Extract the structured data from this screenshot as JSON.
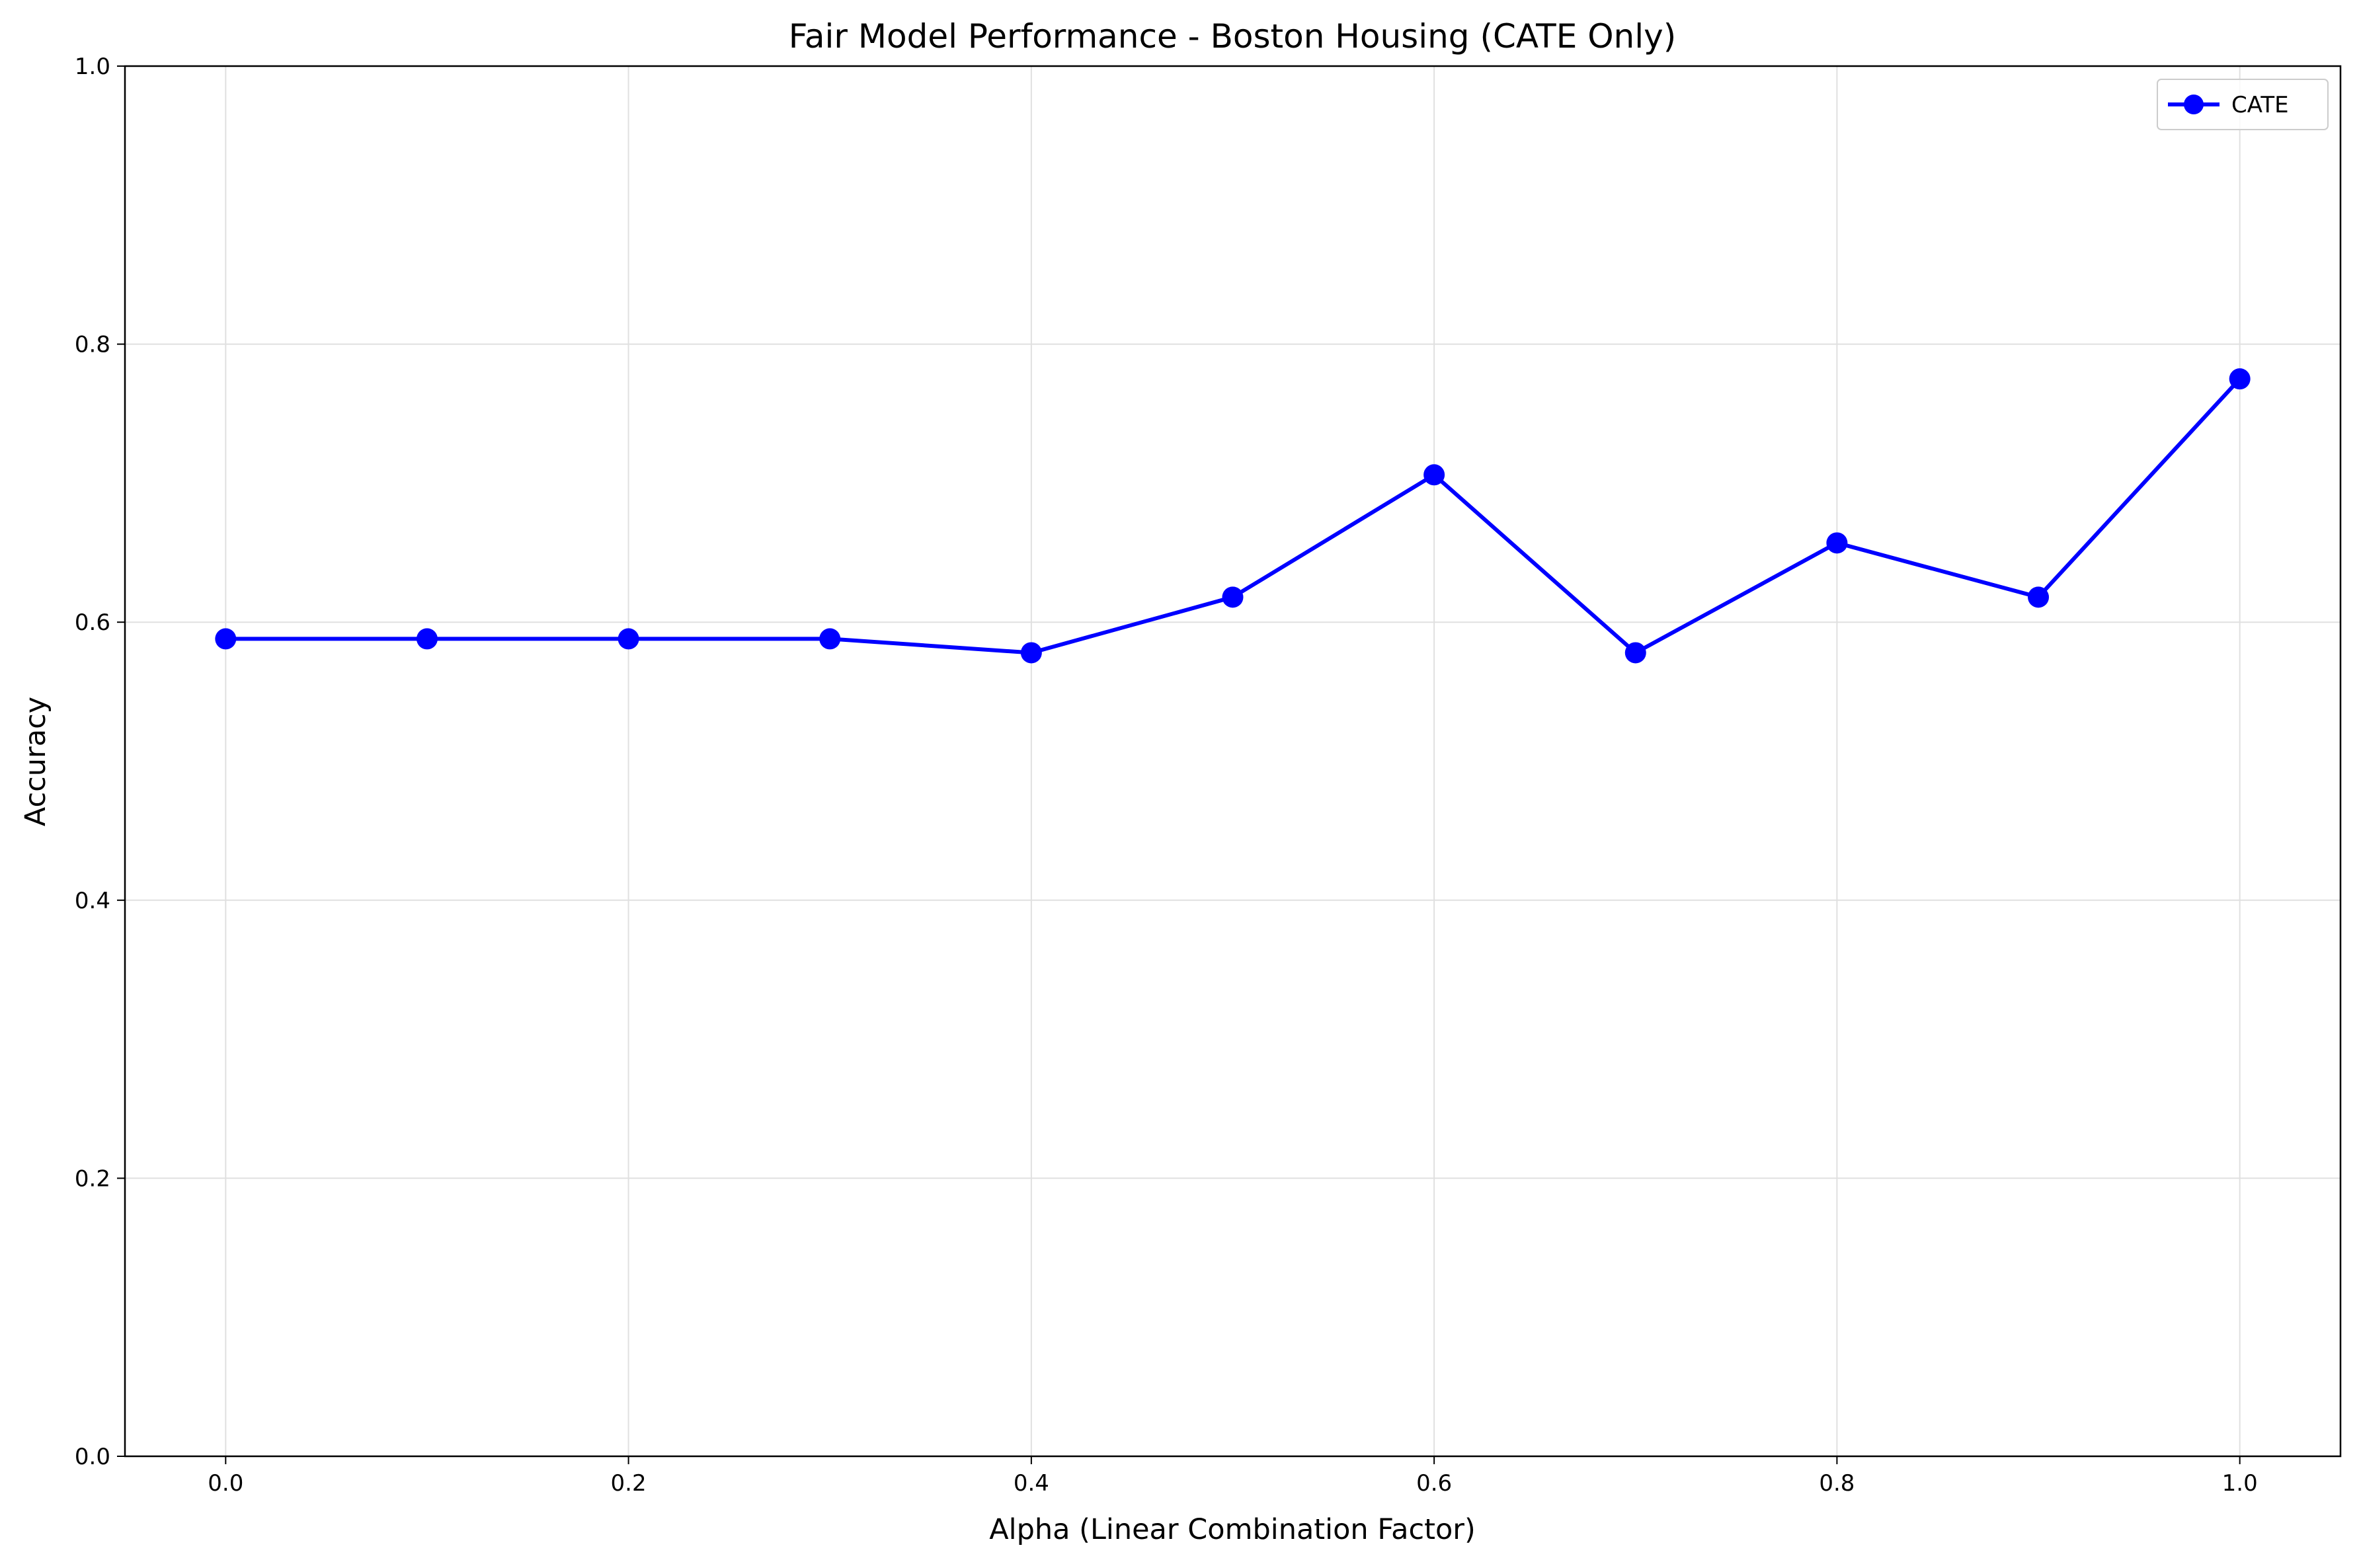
{
  "chart_data": {
    "type": "line",
    "title": "Fair Model Performance - Boston Housing (CATE Only)",
    "xlabel": "Alpha (Linear Combination Factor)",
    "ylabel": "Accuracy",
    "xlim": [
      -0.05,
      1.05
    ],
    "ylim": [
      0.0,
      1.0
    ],
    "x_ticks": [
      "0.0",
      "0.2",
      "0.4",
      "0.6",
      "0.8",
      "1.0"
    ],
    "y_ticks": [
      "0.0",
      "0.2",
      "0.4",
      "0.6",
      "0.8",
      "1.0"
    ],
    "grid": true,
    "legend_position": "top-right",
    "series": [
      {
        "name": "CATE",
        "color": "#0000ff",
        "marker": "circle",
        "x": [
          0.0,
          0.1,
          0.2,
          0.3,
          0.4,
          0.5,
          0.6,
          0.7,
          0.8,
          0.9,
          1.0
        ],
        "y": [
          0.588,
          0.588,
          0.588,
          0.588,
          0.578,
          0.618,
          0.706,
          0.578,
          0.657,
          0.618,
          0.775
        ]
      }
    ]
  }
}
